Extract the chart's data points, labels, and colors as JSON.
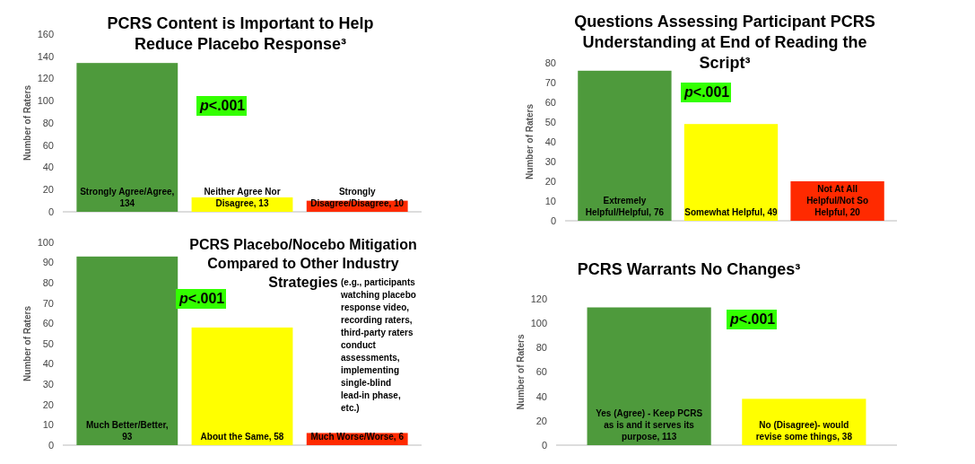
{
  "chart_data": [
    {
      "type": "bar",
      "title": "PCRS Content is Important to Help Reduce Placebo Response³",
      "ylabel": "Number of Raters",
      "categories": [
        null,
        null,
        null
      ],
      "values": [
        134,
        13,
        10
      ],
      "value_labels": [
        "Strongly Agree/Agree, 134",
        "Neither Agree Nor Disagree, 13",
        "Strongly Disagree/Disagree, 10"
      ],
      "colors": [
        "#4e9a3c",
        "#ffff00",
        "#ff2a00"
      ],
      "ylim": [
        0,
        160
      ],
      "yticks": [
        0,
        20,
        40,
        60,
        80,
        100,
        120,
        140,
        160
      ],
      "annotations": [
        "p<.001"
      ]
    },
    {
      "type": "bar",
      "title": "Questions Assessing Participant PCRS Understanding at End of Reading the Script³",
      "ylabel": "Number of Raters",
      "categories": [
        null,
        null,
        null
      ],
      "values": [
        76,
        49,
        20
      ],
      "value_labels": [
        "Extremely Helpful/Helpful, 76",
        "Somewhat Helpful, 49",
        "Not At All Helpful/Not So Helpful, 20"
      ],
      "colors": [
        "#4e9a3c",
        "#ffff00",
        "#ff2a00"
      ],
      "ylim": [
        0,
        80
      ],
      "yticks": [
        0,
        10,
        20,
        30,
        40,
        50,
        60,
        70,
        80
      ],
      "annotations": [
        "p<.001"
      ]
    },
    {
      "type": "bar",
      "title": "PCRS Placebo/Nocebo Mitigation Compared to Other Industry Strategies",
      "ylabel": "Number of Raters",
      "categories": [
        null,
        null,
        null
      ],
      "values": [
        93,
        58,
        6
      ],
      "value_labels": [
        "Much Better/Better, 93",
        "About the Same, 58",
        "Much Worse/Worse, 6"
      ],
      "colors": [
        "#4e9a3c",
        "#ffff00",
        "#ff2a00"
      ],
      "ylim": [
        0,
        100
      ],
      "yticks": [
        0,
        10,
        20,
        30,
        40,
        50,
        60,
        70,
        80,
        90,
        100
      ],
      "annotations": [
        "p<.001",
        "(e.g., participants watching placebo response video, recording raters, third-party raters conduct assessments, implementing single-blind lead-in phase, etc.)"
      ]
    },
    {
      "type": "bar",
      "title": "PCRS Warrants No Changes³",
      "ylabel": "Number of Raters",
      "categories": [
        null,
        null
      ],
      "values": [
        113,
        38
      ],
      "value_labels": [
        "Yes (Agree) - Keep PCRS as is and it serves its purpose, 113",
        "No (Disagree)- would revise some things, 38"
      ],
      "colors": [
        "#4e9a3c",
        "#ffff00"
      ],
      "ylim": [
        0,
        120
      ],
      "yticks": [
        0,
        20,
        40,
        60,
        80,
        100,
        120
      ],
      "annotations": [
        "p<.001"
      ]
    }
  ]
}
